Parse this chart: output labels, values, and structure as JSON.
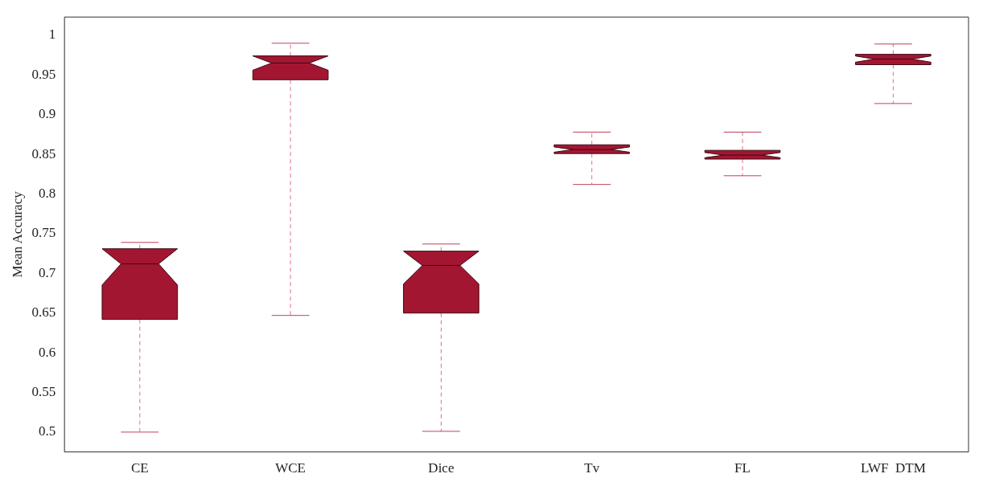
{
  "chart_data": {
    "type": "box",
    "ylabel": "Mean Accuracy",
    "categories": [
      "CE",
      "WCE",
      "Dice",
      "Tv",
      "FL",
      "LWF  DTM"
    ],
    "color": "#a31631",
    "boxes": [
      {
        "low": 0.5,
        "q1": 0.642,
        "median": 0.712,
        "q3": 0.731,
        "high": 0.739
      },
      {
        "low": 0.647,
        "q1": 0.944,
        "median": 0.965,
        "q3": 0.974,
        "high": 0.99
      },
      {
        "low": 0.501,
        "q1": 0.65,
        "median": 0.71,
        "q3": 0.728,
        "high": 0.737
      },
      {
        "low": 0.812,
        "q1": 0.851,
        "median": 0.856,
        "q3": 0.862,
        "high": 0.878
      },
      {
        "low": 0.823,
        "q1": 0.844,
        "median": 0.849,
        "q3": 0.855,
        "high": 0.878
      },
      {
        "low": 0.914,
        "q1": 0.963,
        "median": 0.97,
        "q3": 0.976,
        "high": 0.989
      }
    ],
    "ylim": [
      0.475,
      1.023
    ],
    "yticks": [
      0.5,
      0.55,
      0.6,
      0.65,
      0.7,
      0.75,
      0.8,
      0.85,
      0.9,
      0.95,
      1
    ],
    "grid": false,
    "legend": false,
    "line_style": "dashed"
  }
}
